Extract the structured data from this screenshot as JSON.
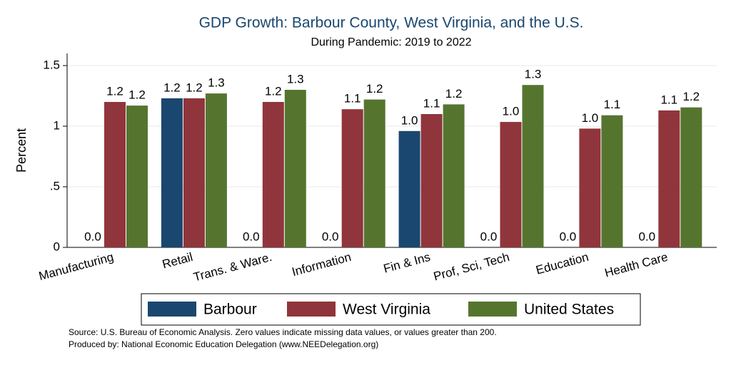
{
  "chart_data": {
    "type": "bar",
    "title": "GDP Growth: Barbour County, West Virginia, and the U.S.",
    "subtitle": "During Pandemic: 2019 to 2022",
    "y_label": "Percent",
    "categories": [
      "Manufacturing",
      "Retail",
      "Trans. & Ware.",
      "Information",
      "Fin & Ins",
      "Prof, Sci, Tech",
      "Education",
      "Health Care"
    ],
    "series": [
      {
        "name": "Barbour",
        "color": "#1a476f",
        "values": [
          0,
          1.23,
          0,
          0,
          0.96,
          0,
          0,
          0
        ],
        "value_labels": [
          "0.0",
          "1.2",
          "0.0",
          "0.0",
          "1.0",
          "0.0",
          "0.0",
          "0.0"
        ]
      },
      {
        "name": "West Virginia",
        "color": "#90353b",
        "values": [
          1.2,
          1.23,
          1.2,
          1.14,
          1.1,
          1.035,
          0.98,
          1.13
        ],
        "value_labels": [
          "1.2",
          "1.2",
          "1.2",
          "1.1",
          "1.1",
          "1.0",
          "1.0",
          "1.1"
        ]
      },
      {
        "name": "United States",
        "color": "#55752f",
        "values": [
          1.17,
          1.27,
          1.3,
          1.22,
          1.18,
          1.34,
          1.09,
          1.155
        ],
        "value_labels": [
          "1.2",
          "1.3",
          "1.3",
          "1.2",
          "1.2",
          "1.3",
          "1.1",
          "1.2"
        ]
      }
    ],
    "ylim": [
      0,
      1.6
    ],
    "yticks": [
      0,
      {
        "value": 0.5,
        "label": ".5"
      },
      1,
      1.5
    ],
    "grid": true,
    "legend": "bottom",
    "notes": [
      "Source: U.S. Bureau of Economic Analysis. Zero values indicate missing data values, or values greater than 200.",
      "Produced by: National Economic Education Delegation (www.NEEDelegation.org)"
    ]
  }
}
